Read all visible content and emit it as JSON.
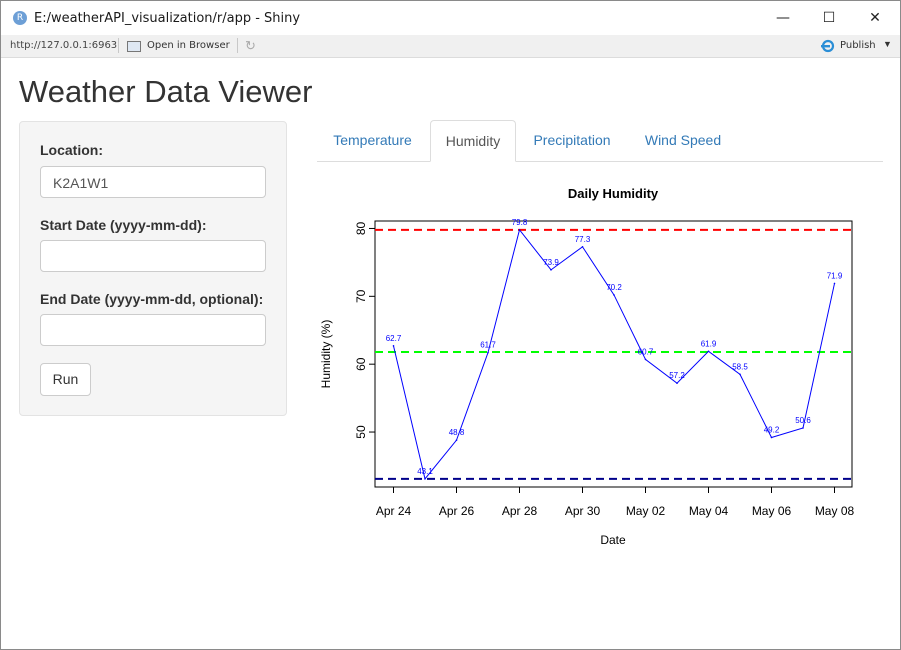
{
  "window": {
    "title": "E:/weatherAPI_visualization/r/app - Shiny",
    "app_icon_letter": "R",
    "minimize": "—",
    "maximize": "☐",
    "close": "✕"
  },
  "toolbar": {
    "url": "http://127.0.0.1:6963",
    "open_in_browser": "Open in Browser",
    "refresh_icon": "↻",
    "publish": "Publish",
    "publish_caret": "▼"
  },
  "app": {
    "title": "Weather Data Viewer"
  },
  "sidebar": {
    "location_label": "Location:",
    "location_value": "K2A1W1",
    "start_label": "Start Date (yyyy-mm-dd):",
    "start_value": "",
    "end_label": "End Date (yyyy-mm-dd, optional):",
    "end_value": "",
    "run_label": "Run"
  },
  "tabs": [
    {
      "label": "Temperature",
      "active": false
    },
    {
      "label": "Humidity",
      "active": true
    },
    {
      "label": "Precipitation",
      "active": false
    },
    {
      "label": "Wind Speed",
      "active": false
    }
  ],
  "chart_data": {
    "type": "line",
    "title": "Daily Humidity",
    "xlabel": "Date",
    "ylabel": "Humidity (%)",
    "x_tick_labels": [
      "Apr 24",
      "Apr 26",
      "Apr 28",
      "Apr 30",
      "May 02",
      "May 04",
      "May 06",
      "May 08"
    ],
    "y_ticks": [
      50,
      60,
      70,
      80
    ],
    "ylim": [
      41.9,
      81.1
    ],
    "x": [
      "Apr 24",
      "Apr 25",
      "Apr 26",
      "Apr 27",
      "Apr 28",
      "Apr 29",
      "Apr 30",
      "May 01",
      "May 02",
      "May 03",
      "May 04",
      "May 05",
      "May 06",
      "May 07",
      "May 08"
    ],
    "values": [
      62.7,
      43.1,
      48.8,
      61.7,
      79.8,
      73.9,
      77.3,
      70.2,
      60.7,
      57.2,
      61.9,
      58.5,
      49.2,
      50.6,
      71.9
    ],
    "data_labels": [
      "62.7",
      "43.1",
      "48.8",
      "61.7",
      "79.8",
      "73.9",
      "77.3",
      "70.2",
      "60.7",
      "57.2",
      "61.9",
      "58.5",
      "49.2",
      "50.6",
      "71.9"
    ],
    "line_color": "#0000ff",
    "reference_lines": [
      {
        "value": 79.8,
        "color": "#ff0000",
        "style": "dashed"
      },
      {
        "value": 61.8,
        "color": "#00ff00",
        "style": "dashed"
      },
      {
        "value": 43.1,
        "color": "#00008b",
        "style": "dashed"
      }
    ],
    "grid": false,
    "legend": "none"
  }
}
